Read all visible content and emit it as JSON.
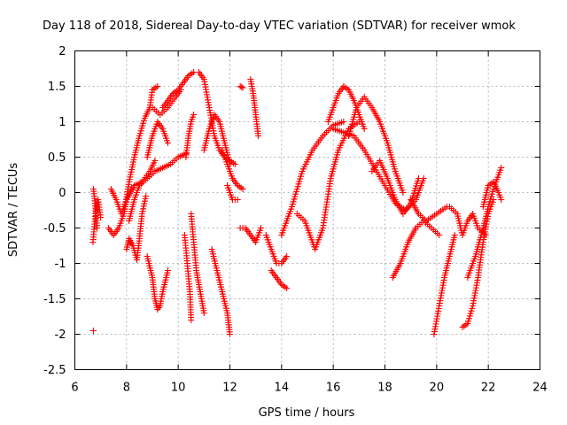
{
  "chart_data": {
    "type": "scatter",
    "title": "Day 118 of 2018, Sidereal Day-to-day VTEC variation (SDTVAR) for receiver wmok",
    "xlabel": "GPS time / hours",
    "ylabel": "SDTVAR / TECUs",
    "xlim": [
      6,
      24
    ],
    "ylim": [
      -2.5,
      2
    ],
    "xticks": [
      6,
      8,
      10,
      12,
      14,
      16,
      18,
      20,
      22,
      24
    ],
    "yticks": [
      -2.5,
      -2,
      -1.5,
      -1,
      -0.5,
      0,
      0.5,
      1,
      1.5,
      2
    ],
    "xtick_labels": [
      "6",
      "8",
      "10",
      "12",
      "14",
      "16",
      "18",
      "20",
      "22",
      "24"
    ],
    "ytick_labels": [
      "-2.5",
      "-2",
      "-1.5",
      "-1",
      "-0.5",
      "0",
      "0.5",
      "1",
      "1.5",
      "2"
    ],
    "grid": true,
    "marker": "+",
    "color": "#ff0000",
    "series": [
      {
        "name": "t1",
        "x": [
          6.7,
          6.8,
          6.9,
          7.0
        ],
        "y": [
          -0.7,
          -0.3,
          -0.1,
          -0.35
        ]
      },
      {
        "name": "t1b",
        "x": [
          6.72,
          6.78,
          6.86
        ],
        "y": [
          0.05,
          -0.15,
          -0.5
        ]
      },
      {
        "name": "t2",
        "x": [
          7.4,
          7.6,
          7.8,
          8.0,
          8.3,
          8.6,
          8.9,
          9.1
        ],
        "y": [
          0.05,
          -0.1,
          -0.3,
          -0.1,
          0.1,
          0.15,
          0.3,
          0.45
        ]
      },
      {
        "name": "t3",
        "x": [
          7.3,
          7.5,
          7.7,
          7.9,
          8.0,
          8.2
        ],
        "y": [
          -0.5,
          -0.6,
          -0.5,
          -0.3,
          -0.1,
          0.05
        ]
      },
      {
        "name": "t4",
        "x": [
          7.9,
          8.1,
          8.3,
          8.5,
          8.7,
          8.9,
          9.0,
          9.2
        ],
        "y": [
          -0.3,
          0.15,
          0.5,
          0.8,
          1.05,
          1.2,
          1.45,
          1.5
        ]
      },
      {
        "name": "t5",
        "x": [
          8.1,
          8.3,
          8.5,
          8.8,
          9.1,
          9.4,
          9.7,
          10.0,
          10.3
        ],
        "y": [
          -0.4,
          -0.1,
          0.1,
          0.2,
          0.3,
          0.35,
          0.4,
          0.5,
          0.55
        ]
      },
      {
        "name": "t6",
        "x": [
          8.0,
          8.1,
          8.25,
          8.4,
          8.5,
          8.6,
          8.75
        ],
        "y": [
          -0.8,
          -0.65,
          -0.75,
          -0.95,
          -0.65,
          -0.3,
          -0.05
        ]
      },
      {
        "name": "t7",
        "x": [
          8.8,
          9.0,
          9.1,
          9.2,
          9.3,
          9.4,
          9.6
        ],
        "y": [
          -0.9,
          -1.2,
          -1.5,
          -1.65,
          -1.6,
          -1.4,
          -1.1
        ]
      },
      {
        "name": "t8",
        "x": [
          9.0,
          9.3,
          9.6,
          9.9,
          10.1
        ],
        "y": [
          1.2,
          1.1,
          1.2,
          1.35,
          1.45
        ]
      },
      {
        "name": "t9",
        "x": [
          9.4,
          9.6,
          9.8,
          10.0,
          10.2,
          10.4,
          10.6
        ],
        "y": [
          1.2,
          1.3,
          1.4,
          1.45,
          1.55,
          1.65,
          1.7
        ]
      },
      {
        "name": "t10",
        "x": [
          8.8,
          9.0,
          9.2,
          9.4,
          9.6
        ],
        "y": [
          0.5,
          0.8,
          1.0,
          0.9,
          0.7
        ]
      },
      {
        "name": "t11",
        "x": [
          10.25,
          10.35,
          10.45,
          10.5
        ],
        "y": [
          -0.6,
          -1.0,
          -1.4,
          -1.8
        ]
      },
      {
        "name": "t12",
        "x": [
          10.3,
          10.4,
          10.5,
          10.6
        ],
        "y": [
          0.5,
          0.8,
          1.0,
          1.1
        ]
      },
      {
        "name": "t13",
        "x": [
          10.5,
          10.6,
          10.7,
          10.8,
          10.9,
          11.0
        ],
        "y": [
          -0.3,
          -0.7,
          -1.1,
          -1.3,
          -1.5,
          -1.7
        ]
      },
      {
        "name": "t14",
        "x": [
          10.8,
          11.0,
          11.2,
          11.4,
          11.6,
          11.8,
          12.0,
          12.2
        ],
        "y": [
          1.7,
          1.6,
          1.2,
          0.8,
          0.6,
          0.5,
          0.45,
          0.4
        ]
      },
      {
        "name": "t15",
        "x": [
          11.0,
          11.2,
          11.4,
          11.6,
          11.8,
          12.0
        ],
        "y": [
          0.6,
          0.9,
          1.1,
          1.0,
          0.7,
          0.4
        ]
      },
      {
        "name": "t16",
        "x": [
          11.3,
          11.5,
          11.7,
          11.9,
          12.0
        ],
        "y": [
          -0.8,
          -1.1,
          -1.4,
          -1.7,
          -2.0
        ]
      },
      {
        "name": "t17",
        "x": [
          11.9,
          12.1,
          12.3
        ],
        "y": [
          0.1,
          -0.1,
          -0.1
        ]
      },
      {
        "name": "t18",
        "x": [
          11.7,
          11.9,
          12.1,
          12.3,
          12.5
        ],
        "y": [
          0.6,
          0.4,
          0.2,
          0.1,
          0.05
        ]
      },
      {
        "name": "t19",
        "x": [
          12.4,
          12.5
        ],
        "y": [
          1.5,
          1.48
        ]
      },
      {
        "name": "t20",
        "x": [
          12.8,
          12.9,
          13.0,
          13.1
        ],
        "y": [
          1.6,
          1.4,
          1.1,
          0.8
        ]
      },
      {
        "name": "t21",
        "x": [
          12.4,
          12.6,
          12.8,
          13.0,
          13.2
        ],
        "y": [
          -0.5,
          -0.5,
          -0.6,
          -0.7,
          -0.5
        ]
      },
      {
        "name": "t22",
        "x": [
          13.4,
          13.6,
          13.8,
          14.0,
          14.2
        ],
        "y": [
          -0.6,
          -0.8,
          -1.0,
          -1.0,
          -0.9
        ]
      },
      {
        "name": "t23",
        "x": [
          13.6,
          13.8,
          14.0,
          14.2
        ],
        "y": [
          -1.1,
          -1.2,
          -1.3,
          -1.35
        ]
      },
      {
        "name": "t24",
        "x": [
          14.0,
          14.4,
          14.8,
          15.2,
          15.6,
          16.0,
          16.4
        ],
        "y": [
          -0.6,
          -0.2,
          0.3,
          0.6,
          0.8,
          0.95,
          1.0
        ]
      },
      {
        "name": "t25",
        "x": [
          14.6,
          14.9,
          15.1,
          15.3,
          15.6,
          15.9,
          16.2,
          16.6,
          17.0
        ],
        "y": [
          -0.3,
          -0.4,
          -0.6,
          -0.8,
          -0.5,
          0.2,
          0.6,
          0.9,
          1.0
        ]
      },
      {
        "name": "t26",
        "x": [
          15.8,
          16.0,
          16.2,
          16.4,
          16.6,
          16.8,
          17.0,
          17.2
        ],
        "y": [
          1.0,
          1.2,
          1.4,
          1.5,
          1.45,
          1.3,
          1.1,
          0.9
        ]
      },
      {
        "name": "t27",
        "x": [
          16.6,
          16.9,
          17.2,
          17.5,
          17.8,
          18.1,
          18.4,
          18.7
        ],
        "y": [
          0.8,
          1.2,
          1.35,
          1.2,
          1.0,
          0.7,
          0.3,
          0.0
        ]
      },
      {
        "name": "t28",
        "x": [
          16.0,
          16.4,
          16.8,
          17.2,
          17.6,
          18.0,
          18.4,
          18.8,
          19.2,
          19.5
        ],
        "y": [
          0.9,
          0.85,
          0.8,
          0.6,
          0.35,
          0.1,
          -0.15,
          -0.25,
          -0.1,
          0.2
        ]
      },
      {
        "name": "t29",
        "x": [
          17.5,
          17.8,
          18.1,
          18.4,
          18.7,
          19.0,
          19.3
        ],
        "y": [
          0.3,
          0.45,
          0.2,
          -0.1,
          -0.3,
          -0.15,
          0.2
        ]
      },
      {
        "name": "t30",
        "x": [
          18.3,
          18.6,
          18.9,
          19.2,
          19.5,
          19.8,
          20.1
        ],
        "y": [
          -1.2,
          -1.0,
          -0.7,
          -0.5,
          -0.4,
          -0.5,
          -0.6
        ]
      },
      {
        "name": "t31",
        "x": [
          19.0,
          19.3,
          19.6,
          20.0,
          20.4
        ],
        "y": [
          -0.1,
          -0.3,
          -0.4,
          -0.3,
          -0.2
        ]
      },
      {
        "name": "t32",
        "x": [
          19.9,
          20.1,
          20.3,
          20.5,
          20.7
        ],
        "y": [
          -2.0,
          -1.6,
          -1.2,
          -0.9,
          -0.6
        ]
      },
      {
        "name": "t33",
        "x": [
          20.5,
          20.8,
          21.0,
          21.2,
          21.4,
          21.6,
          21.9
        ],
        "y": [
          -0.2,
          -0.3,
          -0.6,
          -0.4,
          -0.3,
          -0.5,
          -0.6
        ]
      },
      {
        "name": "t34",
        "x": [
          21.0,
          21.2,
          21.4,
          21.6,
          21.8,
          22.0,
          22.2
        ],
        "y": [
          -1.9,
          -1.85,
          -1.6,
          -1.2,
          -0.7,
          -0.3,
          -0.1
        ]
      },
      {
        "name": "t35",
        "x": [
          21.2,
          21.5,
          21.8,
          22.0,
          22.2,
          22.5
        ],
        "y": [
          -1.2,
          -0.9,
          -0.5,
          -0.2,
          0.05,
          0.35
        ]
      },
      {
        "name": "t36",
        "x": [
          21.8,
          22.0,
          22.2,
          22.4,
          22.5
        ],
        "y": [
          -0.2,
          0.1,
          0.15,
          0.0,
          -0.1
        ]
      },
      {
        "name": "t37",
        "x": [
          6.72
        ],
        "y": [
          -1.95
        ]
      }
    ]
  }
}
